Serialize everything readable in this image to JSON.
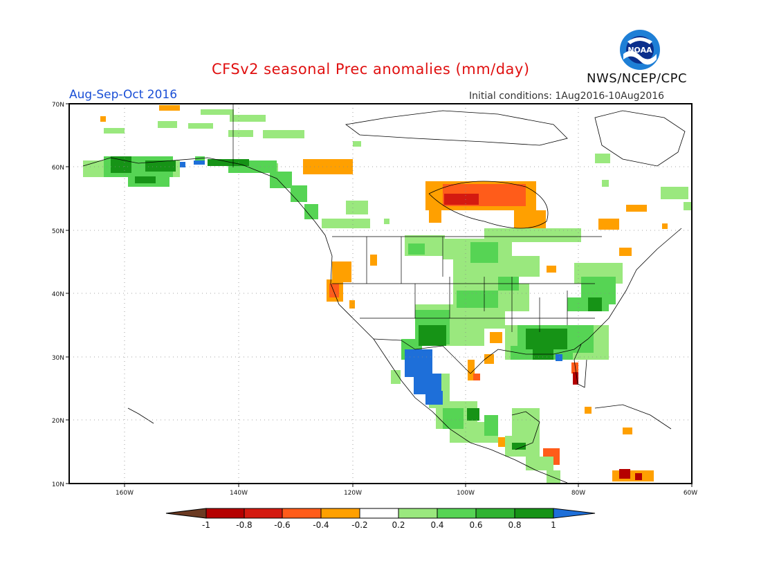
{
  "header": {
    "title": "CFSv2 seasonal Prec anomalies (mm/day)",
    "period": "Aug-Sep-Oct 2016",
    "initial_conditions": "Initial conditions: 1Aug2016-10Aug2016",
    "agency": "NWS/NCEP/CPC",
    "logo_text": "NOAA"
  },
  "map": {
    "region": {
      "lon": [
        -172,
        -60
      ],
      "lat": [
        10,
        70
      ]
    },
    "lat_labels": [
      "70N",
      "60N",
      "50N",
      "40N",
      "30N",
      "20N",
      "10N"
    ],
    "lon_labels": [
      "160W",
      "140W",
      "120W",
      "100W",
      "80W",
      "60W"
    ]
  },
  "legend": {
    "labels": [
      "-1",
      "-0.8",
      "-0.6",
      "-0.4",
      "-0.2",
      "0.2",
      "0.4",
      "0.6",
      "0.8",
      "1"
    ],
    "colors": {
      "lt_m1": "#6b3a22",
      "m08": "#b50000",
      "m06": "#d41a10",
      "m04": "#ff5c1a",
      "m02": "#ffa000",
      "zero": "#ffffff",
      "p02": "#9ae87e",
      "p04": "#56d454",
      "p06": "#2fb331",
      "p08": "#169316",
      "gt_1": "#1e6fd9"
    }
  },
  "anomaly_regions": [
    {
      "area": "Southwest US / NW Mexico",
      "category": "gt_1"
    },
    {
      "area": "Southeast US",
      "category": "p06"
    },
    {
      "area": "Southern Alaska",
      "category": "p08"
    },
    {
      "area": "Central Canada",
      "category": "m04"
    },
    {
      "area": "Northern California",
      "category": "m06"
    },
    {
      "area": "South Florida",
      "category": "m08"
    }
  ]
}
